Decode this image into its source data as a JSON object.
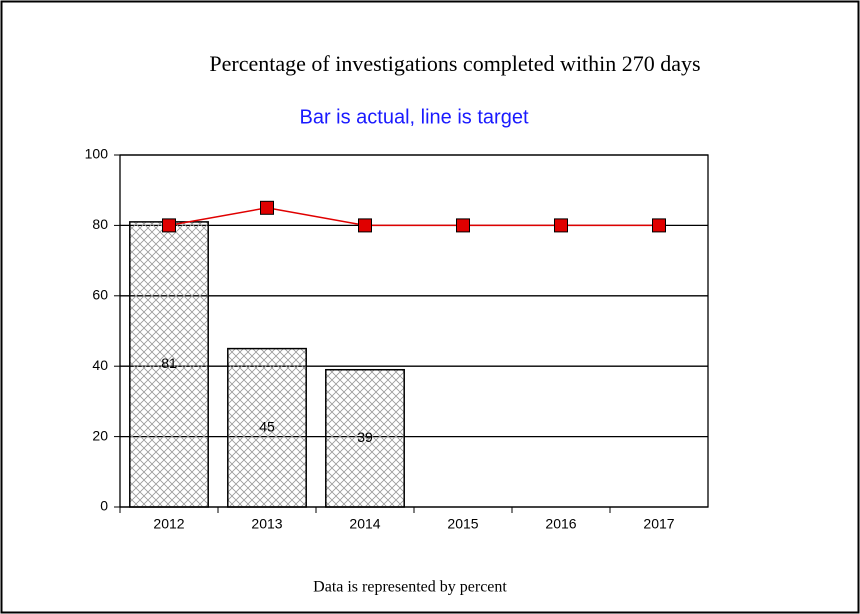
{
  "chart_data": {
    "type": "bar",
    "title": "Percentage of investigations completed within 270 days",
    "subtitle": "Bar is actual, line is target",
    "footnote": "Data is represented by percent",
    "categories": [
      "2012",
      "2013",
      "2014",
      "2015",
      "2016",
      "2017"
    ],
    "series": [
      {
        "type": "bar",
        "color": "#000000",
        "values": [
          81,
          45,
          39,
          null,
          null,
          null
        ]
      },
      {
        "type": "line",
        "color": "#e00000",
        "values": [
          80,
          85,
          80,
          80,
          80,
          80
        ]
      }
    ],
    "ylim": [
      0,
      100
    ],
    "yticks": [
      0,
      20,
      40,
      60,
      80,
      100
    ],
    "grid": true
  }
}
